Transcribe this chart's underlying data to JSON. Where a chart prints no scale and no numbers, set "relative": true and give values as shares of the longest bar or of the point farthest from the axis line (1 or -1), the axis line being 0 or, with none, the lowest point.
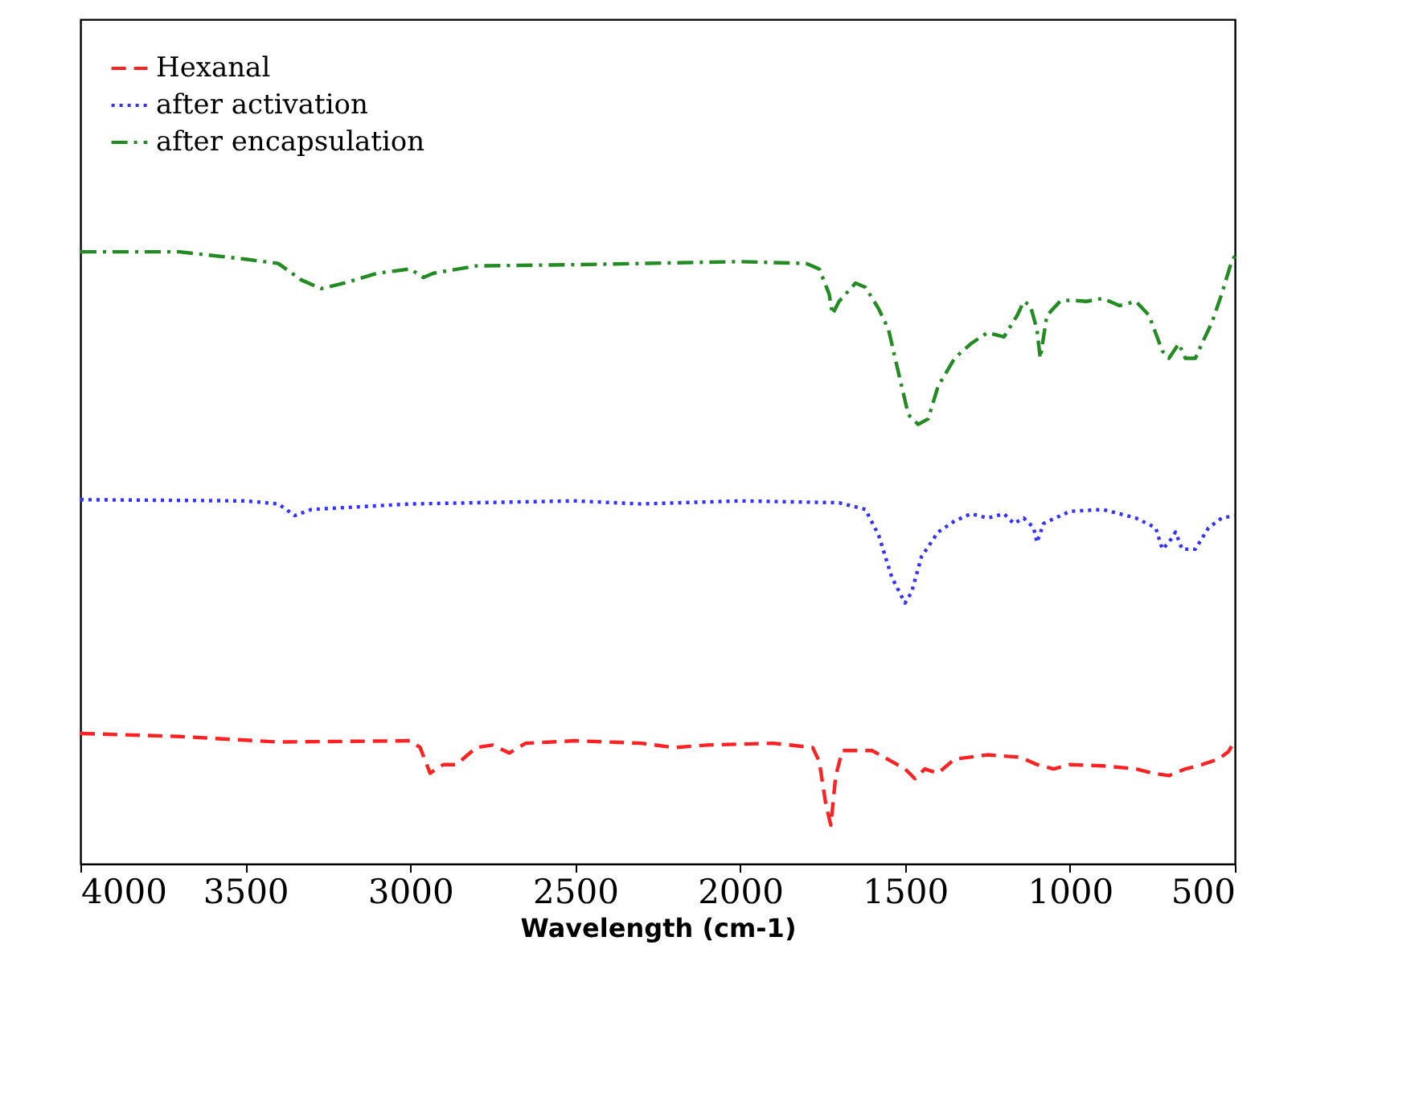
{
  "chart_data": {
    "type": "line",
    "xlabel": "Wavelength (cm-1)",
    "relative": true,
    "xlim": [
      4000,
      500
    ],
    "xticks": [
      4000,
      3500,
      3000,
      2500,
      2000,
      1500,
      1000,
      500
    ],
    "grid": false,
    "legend": "top left",
    "series": [
      {
        "name": "Hexanal",
        "color": "#ff2222",
        "line_style": "dashed",
        "x": [
          4000,
          3700,
          3400,
          3000,
          2970,
          2940,
          2900,
          2860,
          2800,
          2750,
          2700,
          2650,
          2500,
          2300,
          2200,
          2100,
          1900,
          1780,
          1760,
          1740,
          1725,
          1710,
          1690,
          1600,
          1540,
          1500,
          1470,
          1440,
          1400,
          1350,
          1250,
          1150,
          1100,
          1050,
          1000,
          900,
          800,
          750,
          700,
          650,
          600,
          550,
          520,
          500
        ],
        "values": [
          0.213,
          0.208,
          0.199,
          0.201,
          0.19,
          0.148,
          0.162,
          0.162,
          0.19,
          0.194,
          0.181,
          0.197,
          0.201,
          0.197,
          0.19,
          0.194,
          0.197,
          0.19,
          0.167,
          0.097,
          0.063,
          0.144,
          0.185,
          0.185,
          0.167,
          0.155,
          0.139,
          0.155,
          0.148,
          0.171,
          0.178,
          0.174,
          0.162,
          0.155,
          0.162,
          0.16,
          0.155,
          0.148,
          0.144,
          0.155,
          0.162,
          0.171,
          0.183,
          0.201
        ]
      },
      {
        "name": "after activation",
        "color": "#3333ff",
        "line_style": "dotted",
        "x": [
          4000,
          3500,
          3400,
          3350,
          3300,
          3000,
          2500,
          2300,
          2000,
          1700,
          1620,
          1580,
          1540,
          1500,
          1480,
          1450,
          1400,
          1350,
          1300,
          1250,
          1200,
          1170,
          1140,
          1110,
          1100,
          1080,
          1000,
          900,
          800,
          740,
          720,
          700,
          680,
          660,
          620,
          580,
          540,
          500
        ],
        "values": [
          0.595,
          0.593,
          0.588,
          0.569,
          0.579,
          0.588,
          0.593,
          0.588,
          0.593,
          0.59,
          0.579,
          0.537,
          0.468,
          0.426,
          0.444,
          0.502,
          0.542,
          0.56,
          0.572,
          0.565,
          0.572,
          0.556,
          0.565,
          0.549,
          0.525,
          0.556,
          0.576,
          0.579,
          0.565,
          0.549,
          0.514,
          0.525,
          0.542,
          0.514,
          0.514,
          0.549,
          0.565,
          0.569
        ]
      },
      {
        "name": "after encapsulation",
        "color": "#228b22",
        "line_style": "dashdot",
        "x": [
          4000,
          3700,
          3500,
          3400,
          3330,
          3270,
          3200,
          3100,
          3000,
          2960,
          2930,
          2800,
          2500,
          2000,
          1800,
          1760,
          1730,
          1720,
          1700,
          1650,
          1620,
          1580,
          1550,
          1520,
          1490,
          1460,
          1430,
          1400,
          1350,
          1300,
          1250,
          1200,
          1160,
          1140,
          1120,
          1100,
          1090,
          1070,
          1030,
          1000,
          950,
          900,
          850,
          800,
          760,
          720,
          700,
          670,
          650,
          620,
          600,
          570,
          540,
          510,
          500
        ],
        "values": [
          1.0,
          1.0,
          0.988,
          0.981,
          0.954,
          0.94,
          0.949,
          0.965,
          0.972,
          0.958,
          0.965,
          0.977,
          0.979,
          0.984,
          0.981,
          0.972,
          0.931,
          0.898,
          0.919,
          0.949,
          0.942,
          0.907,
          0.873,
          0.803,
          0.734,
          0.718,
          0.727,
          0.78,
          0.826,
          0.85,
          0.868,
          0.861,
          0.896,
          0.919,
          0.912,
          0.873,
          0.826,
          0.896,
          0.919,
          0.921,
          0.919,
          0.924,
          0.912,
          0.919,
          0.896,
          0.838,
          0.826,
          0.85,
          0.826,
          0.826,
          0.85,
          0.884,
          0.931,
          0.984,
          0.993
        ]
      }
    ]
  }
}
